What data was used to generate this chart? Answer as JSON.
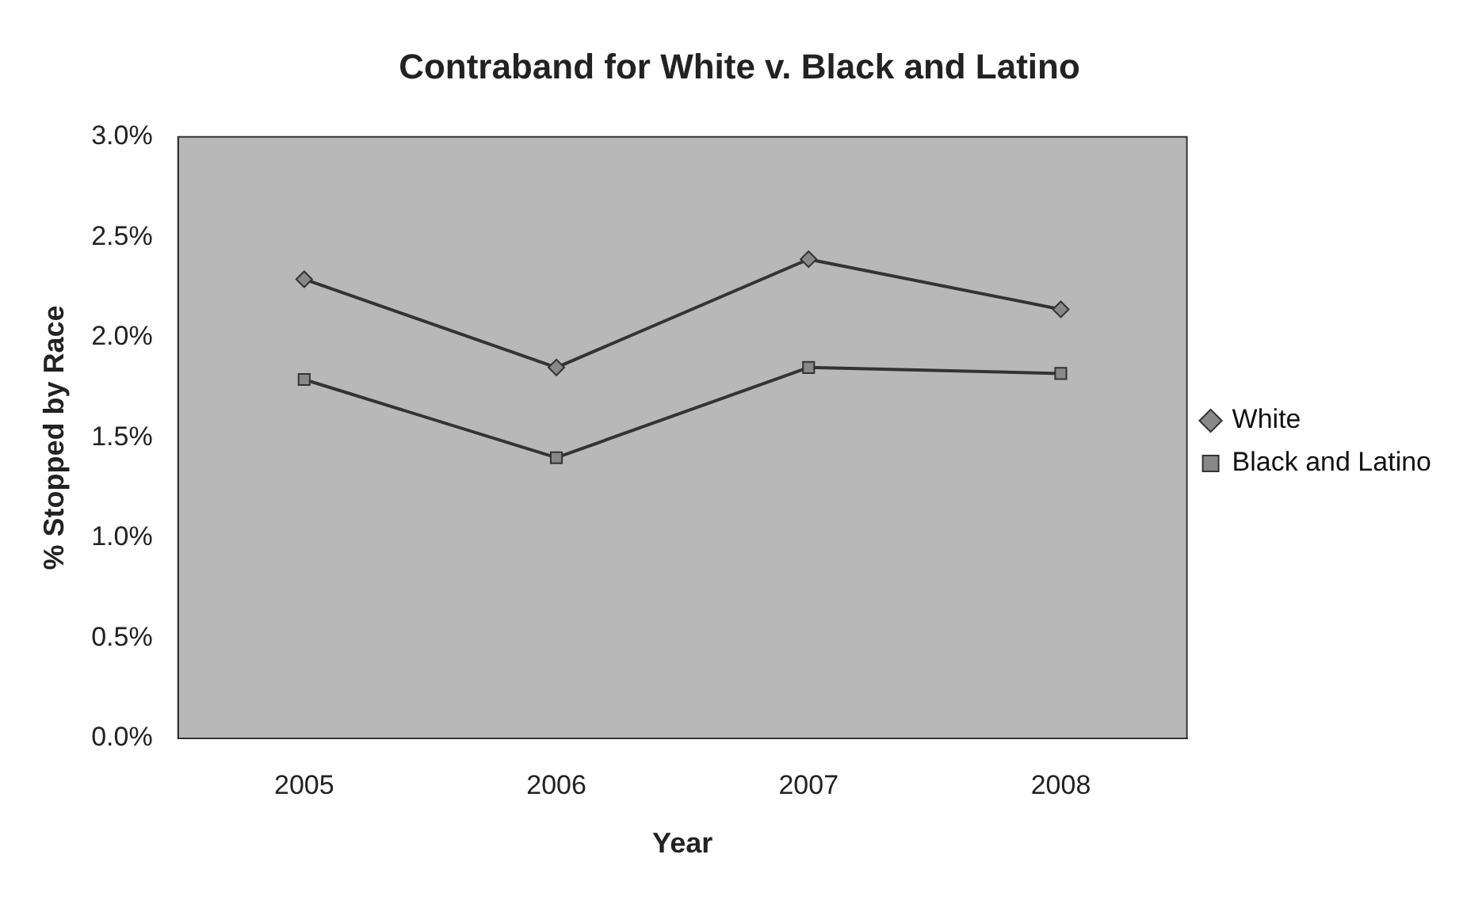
{
  "chart_data": {
    "type": "line",
    "title": "Contraband for White v. Black and Latino",
    "xlabel": "Year",
    "ylabel": "% Stopped by Race",
    "categories": [
      "2005",
      "2006",
      "2007",
      "2008"
    ],
    "series": [
      {
        "name": "White",
        "color": "#333333",
        "marker": "diamond",
        "values": [
          2.29,
          1.85,
          2.39,
          2.14
        ]
      },
      {
        "name": "Black and Latino",
        "color": "#333333",
        "marker": "square",
        "values": [
          1.79,
          1.4,
          1.85,
          1.82
        ]
      }
    ],
    "ylim": [
      0,
      3
    ],
    "yticks": [
      {
        "value": 0,
        "label": "0.0%"
      },
      {
        "value": 0.5,
        "label": "0.5%"
      },
      {
        "value": 1,
        "label": "1.0%"
      },
      {
        "value": 1.5,
        "label": "1.5%"
      },
      {
        "value": 2,
        "label": "2.0%"
      },
      {
        "value": 2.5,
        "label": "2.5%"
      },
      {
        "value": 3,
        "label": "3.0%"
      }
    ],
    "grid": false,
    "legend": "right",
    "line_style": "solid"
  }
}
